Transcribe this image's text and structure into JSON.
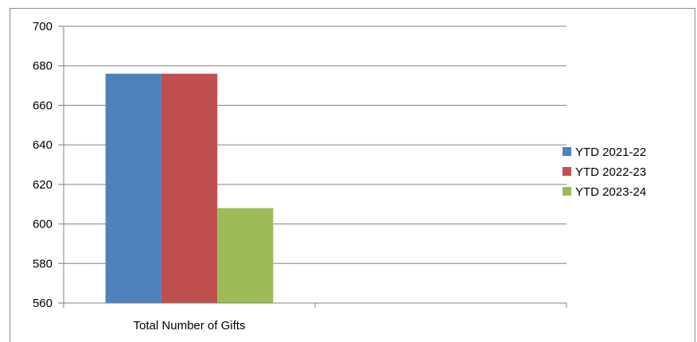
{
  "chart_data": {
    "type": "bar",
    "categories": [
      "Total Number of Gifts",
      ""
    ],
    "series": [
      {
        "name": "YTD 2021-22",
        "color": "#4f81bd",
        "values": [
          676,
          null
        ]
      },
      {
        "name": "YTD 2022-23",
        "color": "#c0504d",
        "values": [
          676,
          null
        ]
      },
      {
        "name": "YTD 2023-24",
        "color": "#9bbb59",
        "values": [
          608,
          null
        ]
      }
    ],
    "yticks": [
      560,
      580,
      600,
      620,
      640,
      660,
      680,
      700
    ],
    "ylim": [
      560,
      700
    ],
    "grid": true,
    "legend_position": "right",
    "title": "",
    "xlabel": "",
    "ylabel": ""
  }
}
